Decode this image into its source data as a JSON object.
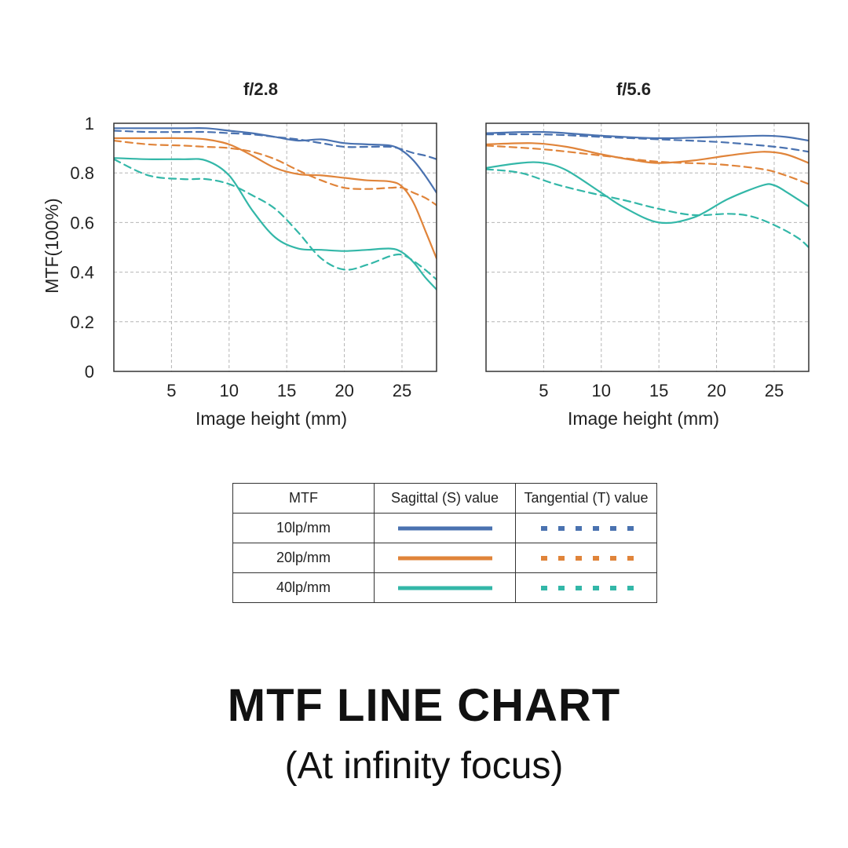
{
  "title": "MTF LINE CHART",
  "subtitle": "(At infinity focus)",
  "colors": {
    "10lp": "#4a72b0",
    "20lp": "#e0843a",
    "40lp": "#33b7a8",
    "grid": "#b5b5b5",
    "frame": "#333333"
  },
  "legend": {
    "headers": [
      "MTF",
      "Sagittal (S) value",
      "Tangential (T) value"
    ],
    "rows": [
      {
        "label": "10lp/mm",
        "color_key": "10lp"
      },
      {
        "label": "20lp/mm",
        "color_key": "20lp"
      },
      {
        "label": "40lp/mm",
        "color_key": "40lp"
      }
    ]
  },
  "chart_data": [
    {
      "type": "line",
      "title": "f/2.8",
      "xlabel": "Image height (mm)",
      "ylabel": "MTF(100%)",
      "xlim": [
        0,
        28
      ],
      "ylim": [
        0,
        1
      ],
      "xticks": [
        5,
        10,
        15,
        20,
        25
      ],
      "yticks": [
        0,
        0.2,
        0.4,
        0.6,
        0.8,
        1
      ],
      "ytick_labels": [
        "0",
        "0.2",
        "0.4",
        "0.6",
        "0.8",
        "1"
      ],
      "grid": true,
      "series": [
        {
          "name": "10lp/mm S",
          "color_key": "10lp",
          "dash": false,
          "x": [
            0,
            3,
            6,
            8,
            10,
            12,
            14,
            16,
            18,
            20,
            22,
            24,
            25,
            26,
            27,
            28
          ],
          "y": [
            0.98,
            0.98,
            0.98,
            0.98,
            0.97,
            0.96,
            0.945,
            0.93,
            0.935,
            0.92,
            0.915,
            0.91,
            0.89,
            0.85,
            0.79,
            0.72
          ]
        },
        {
          "name": "10lp/mm T",
          "color_key": "10lp",
          "dash": true,
          "x": [
            0,
            3,
            6,
            8,
            10,
            12,
            14,
            16,
            18,
            20,
            22,
            24,
            25,
            26,
            27,
            28
          ],
          "y": [
            0.97,
            0.965,
            0.965,
            0.965,
            0.96,
            0.955,
            0.945,
            0.935,
            0.92,
            0.905,
            0.905,
            0.905,
            0.895,
            0.88,
            0.87,
            0.855
          ]
        },
        {
          "name": "20lp/mm S",
          "color_key": "20lp",
          "dash": false,
          "x": [
            0,
            3,
            6,
            8,
            10,
            12,
            14,
            16,
            18,
            20,
            22,
            24,
            25,
            26,
            27,
            28
          ],
          "y": [
            0.94,
            0.94,
            0.94,
            0.935,
            0.915,
            0.87,
            0.82,
            0.795,
            0.79,
            0.78,
            0.77,
            0.765,
            0.745,
            0.68,
            0.57,
            0.455
          ]
        },
        {
          "name": "20lp/mm T",
          "color_key": "20lp",
          "dash": true,
          "x": [
            0,
            3,
            6,
            8,
            10,
            12,
            14,
            16,
            18,
            20,
            22,
            24,
            25,
            26,
            27,
            28
          ],
          "y": [
            0.93,
            0.915,
            0.91,
            0.905,
            0.9,
            0.885,
            0.855,
            0.81,
            0.77,
            0.74,
            0.735,
            0.74,
            0.74,
            0.72,
            0.7,
            0.67
          ]
        },
        {
          "name": "40lp/mm S",
          "color_key": "40lp",
          "dash": false,
          "x": [
            0,
            3,
            6,
            8,
            10,
            12,
            14,
            16,
            18,
            20,
            22,
            24,
            25,
            26,
            27,
            28
          ],
          "y": [
            0.86,
            0.855,
            0.855,
            0.85,
            0.79,
            0.65,
            0.54,
            0.495,
            0.49,
            0.485,
            0.49,
            0.495,
            0.48,
            0.44,
            0.38,
            0.33
          ]
        },
        {
          "name": "40lp/mm T",
          "color_key": "40lp",
          "dash": true,
          "x": [
            0,
            3,
            6,
            8,
            10,
            12,
            14,
            16,
            18,
            20,
            22,
            24,
            25,
            26,
            27,
            28
          ],
          "y": [
            0.855,
            0.79,
            0.775,
            0.775,
            0.755,
            0.71,
            0.655,
            0.56,
            0.455,
            0.41,
            0.43,
            0.465,
            0.47,
            0.445,
            0.41,
            0.37
          ]
        }
      ]
    },
    {
      "type": "line",
      "title": "f/5.6",
      "xlabel": "Image height (mm)",
      "ylabel": "",
      "xlim": [
        0,
        28
      ],
      "ylim": [
        0,
        1
      ],
      "xticks": [
        5,
        10,
        15,
        20,
        25
      ],
      "yticks": [
        0,
        0.2,
        0.4,
        0.6,
        0.8,
        1
      ],
      "ytick_labels": [],
      "grid": true,
      "series": [
        {
          "name": "10lp/mm S",
          "color_key": "10lp",
          "dash": false,
          "x": [
            0,
            5,
            10,
            15,
            20,
            24,
            26,
            28
          ],
          "y": [
            0.96,
            0.965,
            0.95,
            0.94,
            0.945,
            0.95,
            0.945,
            0.93
          ]
        },
        {
          "name": "10lp/mm T",
          "color_key": "10lp",
          "dash": true,
          "x": [
            0,
            5,
            10,
            15,
            20,
            24,
            26,
            28
          ],
          "y": [
            0.955,
            0.955,
            0.945,
            0.935,
            0.925,
            0.91,
            0.9,
            0.885
          ]
        },
        {
          "name": "20lp/mm S",
          "color_key": "20lp",
          "dash": false,
          "x": [
            0,
            4,
            7,
            10,
            13,
            15,
            18,
            21,
            24,
            26,
            28
          ],
          "y": [
            0.915,
            0.92,
            0.905,
            0.875,
            0.85,
            0.84,
            0.85,
            0.87,
            0.885,
            0.875,
            0.84
          ]
        },
        {
          "name": "20lp/mm T",
          "color_key": "20lp",
          "dash": true,
          "x": [
            0,
            5,
            10,
            15,
            20,
            24,
            26,
            28
          ],
          "y": [
            0.91,
            0.895,
            0.87,
            0.845,
            0.835,
            0.815,
            0.79,
            0.755
          ]
        },
        {
          "name": "40lp/mm S",
          "color_key": "40lp",
          "dash": false,
          "x": [
            0,
            3,
            5,
            7,
            10,
            12,
            15,
            18,
            21,
            24,
            25,
            26,
            28
          ],
          "y": [
            0.82,
            0.84,
            0.84,
            0.81,
            0.72,
            0.66,
            0.6,
            0.62,
            0.695,
            0.75,
            0.75,
            0.725,
            0.665
          ]
        },
        {
          "name": "40lp/mm T",
          "color_key": "40lp",
          "dash": true,
          "x": [
            0,
            3,
            6,
            9,
            12,
            15,
            18,
            21,
            23,
            25,
            27,
            28
          ],
          "y": [
            0.815,
            0.8,
            0.755,
            0.72,
            0.69,
            0.655,
            0.63,
            0.635,
            0.625,
            0.59,
            0.54,
            0.5
          ]
        }
      ]
    }
  ]
}
